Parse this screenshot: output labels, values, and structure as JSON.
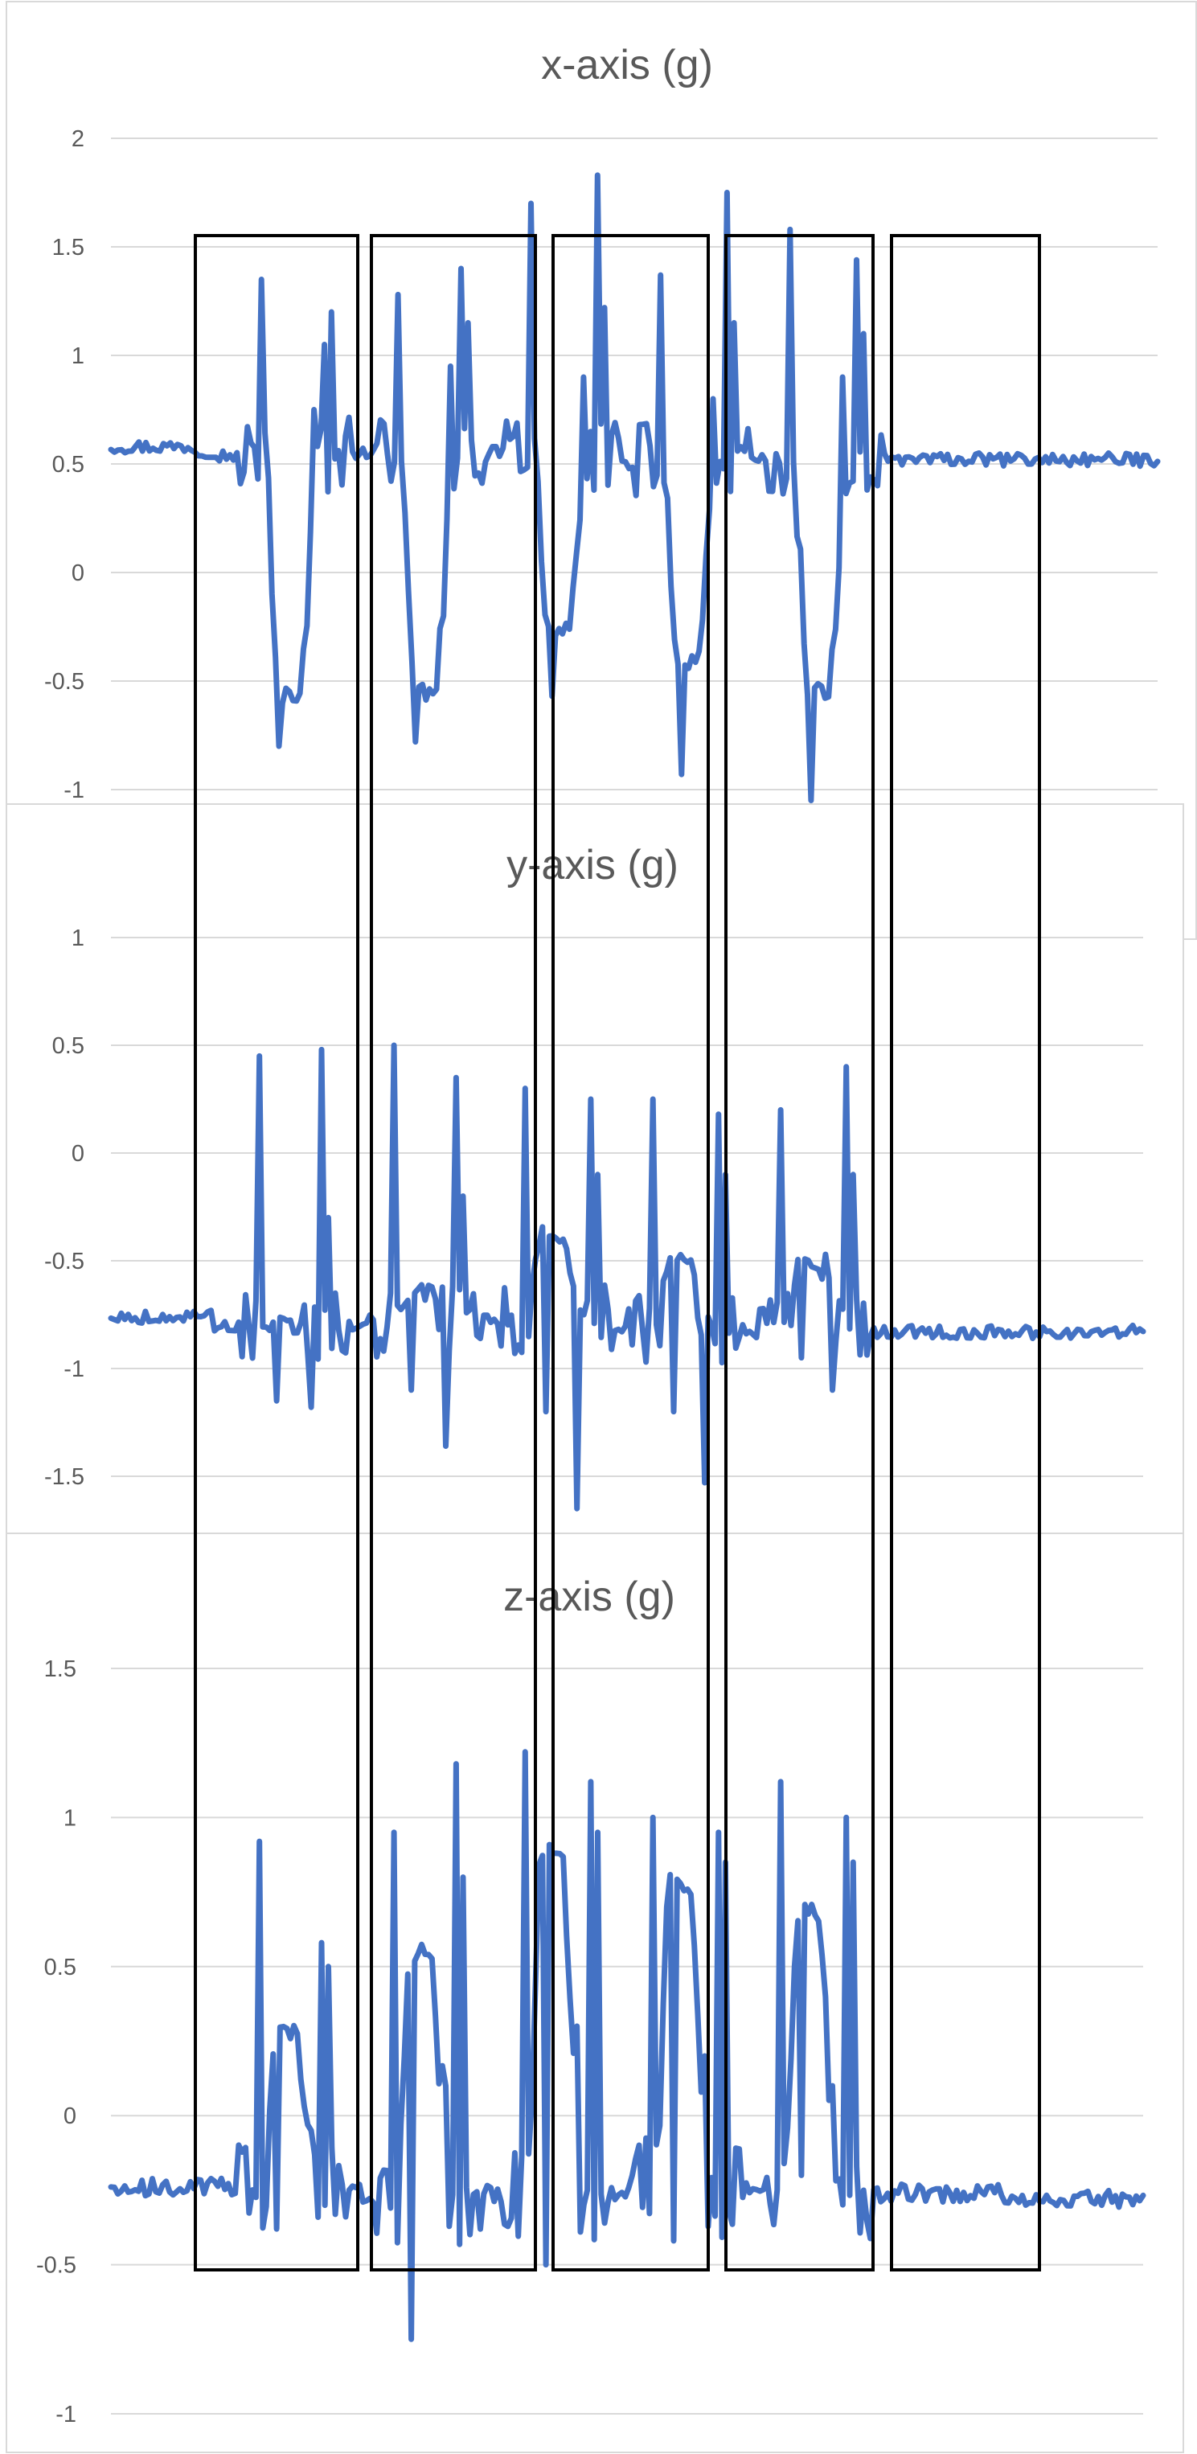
{
  "chart_data": [
    {
      "type": "line",
      "title": "x-axis (g)",
      "xlabel": "",
      "ylabel": "",
      "ylim": [
        -1,
        2
      ],
      "yticks": [
        2,
        1.5,
        1,
        0.5,
        0,
        -0.5,
        -1
      ],
      "ytick_labels": [
        "2",
        "1.5",
        "1",
        "0.5",
        "0",
        "-0.5",
        "-1"
      ],
      "grid": true,
      "legend": "none",
      "color": "#4472C4",
      "n_points": 300,
      "x": [
        0,
        1
      ],
      "baseline_segments": [
        [
          0.0,
          0.08,
          0.58
        ],
        [
          0.08,
          0.1,
          0.56
        ],
        [
          0.1,
          0.18,
          0.54
        ],
        [
          0.18,
          0.24,
          0.53
        ],
        [
          0.24,
          0.3,
          0.55
        ],
        [
          0.3,
          0.35,
          0.52
        ],
        [
          0.35,
          0.43,
          0.55
        ],
        [
          0.43,
          0.5,
          0.5
        ],
        [
          0.5,
          1.0,
          0.52
        ]
      ],
      "events": [
        {
          "start": 0.121,
          "end": 0.229,
          "low": -0.57,
          "spikes": [
            1.35,
            1.05,
            1.2,
            0.75,
            -0.8
          ]
        },
        {
          "start": 0.251,
          "end": 0.359,
          "low": -0.55,
          "spikes": [
            1.28,
            1.4,
            1.15,
            0.95,
            -0.78
          ]
        },
        {
          "start": 0.377,
          "end": 0.487,
          "low": -0.27,
          "spikes": [
            1.7,
            1.83,
            1.22,
            0.9,
            -0.57
          ]
        },
        {
          "start": 0.501,
          "end": 0.611,
          "low": -0.42,
          "spikes": [
            1.37,
            1.75,
            1.15,
            0.8,
            -0.93
          ]
        },
        {
          "start": 0.626,
          "end": 0.736,
          "low": -0.55,
          "spikes": [
            1.58,
            1.44,
            1.1,
            0.9,
            -1.05
          ]
        }
      ]
    },
    {
      "type": "line",
      "title": "y-axis (g)",
      "xlabel": "",
      "ylabel": "",
      "ylim": [
        -1.5,
        1
      ],
      "yticks": [
        1,
        0.5,
        0,
        -0.5,
        -1,
        -1.5
      ],
      "ytick_labels": [
        "1",
        "0.5",
        "0",
        "-0.5",
        "-1",
        "-1.5"
      ],
      "grid": true,
      "legend": "none",
      "color": "#4472C4",
      "n_points": 300,
      "x": [
        0,
        1
      ],
      "baseline_segments": [
        [
          0.0,
          0.1,
          -0.76
        ],
        [
          0.1,
          0.25,
          -0.8
        ],
        [
          0.25,
          0.38,
          -0.78
        ],
        [
          0.38,
          0.5,
          -0.82
        ],
        [
          0.5,
          0.62,
          -0.82
        ],
        [
          0.62,
          1.0,
          -0.83
        ]
      ],
      "events": [
        {
          "start": 0.121,
          "end": 0.229,
          "low": -0.8,
          "spikes": [
            0.45,
            0.48,
            -0.3,
            -1.18,
            -1.15
          ]
        },
        {
          "start": 0.251,
          "end": 0.359,
          "low": -0.65,
          "spikes": [
            0.5,
            0.35,
            -0.2,
            -1.36,
            -1.1
          ]
        },
        {
          "start": 0.377,
          "end": 0.487,
          "low": -0.38,
          "spikes": [
            0.3,
            0.25,
            -0.1,
            -1.65,
            -1.2
          ]
        },
        {
          "start": 0.501,
          "end": 0.611,
          "low": -0.5,
          "spikes": [
            0.25,
            0.18,
            -0.1,
            -1.53,
            -1.2
          ]
        },
        {
          "start": 0.626,
          "end": 0.736,
          "low": -0.52,
          "spikes": [
            0.2,
            0.4,
            -0.1,
            -1.1,
            -0.95
          ]
        }
      ]
    },
    {
      "type": "line",
      "title": "z-axis (g)",
      "xlabel": "",
      "ylabel": "",
      "ylim": [
        -1,
        1.5
      ],
      "yticks": [
        1.5,
        1,
        0.5,
        0,
        -0.5,
        -1
      ],
      "ytick_labels": [
        "1.5",
        "1",
        "0.5",
        "0",
        "-0.5",
        "-1"
      ],
      "grid": true,
      "legend": "none",
      "color": "#4472C4",
      "n_points": 300,
      "x": [
        0,
        1
      ],
      "baseline_segments": [
        [
          0.0,
          0.12,
          -0.24
        ],
        [
          0.12,
          0.25,
          -0.26
        ],
        [
          0.25,
          0.38,
          -0.26
        ],
        [
          0.38,
          0.5,
          -0.26
        ],
        [
          0.5,
          0.62,
          -0.25
        ],
        [
          0.62,
          0.86,
          -0.26
        ],
        [
          0.86,
          1.0,
          -0.28
        ]
      ],
      "events": [
        {
          "start": 0.121,
          "end": 0.229,
          "low": 0.27,
          "spikes": [
            0.92,
            0.58,
            0.5,
            -0.05,
            -0.38
          ]
        },
        {
          "start": 0.251,
          "end": 0.359,
          "low": 0.54,
          "spikes": [
            0.95,
            1.18,
            0.8,
            0.1,
            -0.75
          ]
        },
        {
          "start": 0.377,
          "end": 0.487,
          "low": 0.9,
          "spikes": [
            1.22,
            1.12,
            0.95,
            0.3,
            -0.5
          ]
        },
        {
          "start": 0.501,
          "end": 0.611,
          "low": 0.78,
          "spikes": [
            1.0,
            0.95,
            0.85,
            0.2,
            -0.42
          ]
        },
        {
          "start": 0.626,
          "end": 0.736,
          "low": 0.67,
          "spikes": [
            1.12,
            1.0,
            0.85,
            0.1,
            -0.2
          ]
        }
      ]
    }
  ]
}
